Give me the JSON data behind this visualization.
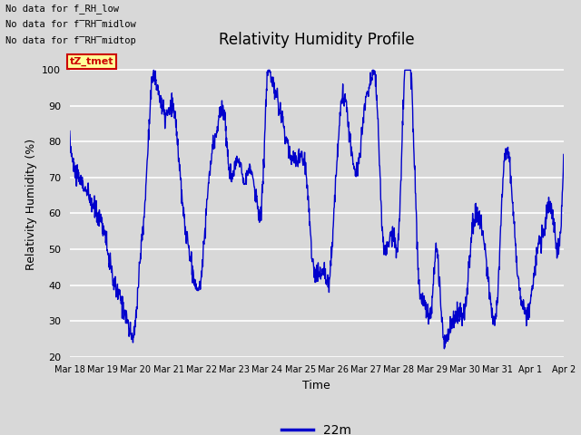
{
  "title": "Relativity Humidity Profile",
  "ylabel": "Relativity Humidity (%)",
  "xlabel": "Time",
  "legend_label": "22m",
  "ylim": [
    20,
    105
  ],
  "yticks": [
    20,
    30,
    40,
    50,
    60,
    70,
    80,
    90,
    100
  ],
  "line_color": "#0000cc",
  "legend_line_color": "#0000cc",
  "bg_color": "#d8d8d8",
  "plot_bg_color": "#d8d8d8",
  "annotations": [
    "No data for f_RH_low",
    "No data for f̅RH̅midlow",
    "No data for f̅RH̅midtop"
  ],
  "annotation_color": "#000000",
  "tZ_tmet_color": "#cc0000",
  "tZ_tmet_bg": "#ffff99",
  "x_tick_labels": [
    "Mar 18",
    "Mar 19",
    "Mar 20",
    "Mar 21",
    "Mar 22",
    "Mar 23",
    "Mar 24",
    "Mar 25",
    "Mar 26",
    "Mar 27",
    "Mar 28",
    "Mar 29",
    "Mar 30",
    "Mar 31",
    "Apr 1",
    "Apr 2"
  ],
  "ctrl_t": [
    0.0,
    0.15,
    0.4,
    0.7,
    0.85,
    1.0,
    1.3,
    1.6,
    1.75,
    2.0,
    2.1,
    2.3,
    2.5,
    2.6,
    2.7,
    2.85,
    3.0,
    3.2,
    3.4,
    3.6,
    3.75,
    4.0,
    4.1,
    4.3,
    4.5,
    4.7,
    4.85,
    5.0,
    5.15,
    5.3,
    5.5,
    5.7,
    5.85,
    6.0,
    6.1,
    6.3,
    6.4,
    6.55,
    6.7,
    6.85,
    7.0,
    7.15,
    7.4,
    7.6,
    7.75,
    7.9,
    8.1,
    8.3,
    8.5,
    8.7,
    8.85,
    9.0,
    9.1,
    9.3,
    9.5,
    9.7,
    9.85,
    10.0,
    10.15,
    10.4,
    10.6,
    10.75,
    11.0,
    11.15,
    11.3,
    11.5,
    11.7,
    11.85,
    12.0,
    12.15,
    12.4,
    12.6,
    12.75,
    13.0,
    13.15,
    13.4,
    13.6,
    13.75,
    14.0,
    14.15,
    14.4,
    14.6,
    14.8,
    15.0
  ],
  "ctrl_v": [
    81,
    72,
    68,
    62,
    60,
    57,
    42,
    35,
    30,
    30,
    43,
    65,
    97,
    97,
    94,
    88,
    88,
    87,
    65,
    51,
    43,
    43,
    55,
    75,
    85,
    87,
    72,
    72,
    75,
    70,
    72,
    62,
    65,
    98,
    98,
    92,
    88,
    82,
    77,
    75,
    75,
    74,
    45,
    44,
    43,
    43,
    73,
    93,
    82,
    72,
    80,
    93,
    95,
    96,
    55,
    53,
    53,
    55,
    95,
    93,
    42,
    35,
    35,
    50,
    30,
    26,
    31,
    32,
    32,
    48,
    60,
    50,
    38,
    38,
    68,
    70,
    44,
    35,
    35,
    47,
    55,
    62,
    50,
    77
  ],
  "num_points": 1500
}
